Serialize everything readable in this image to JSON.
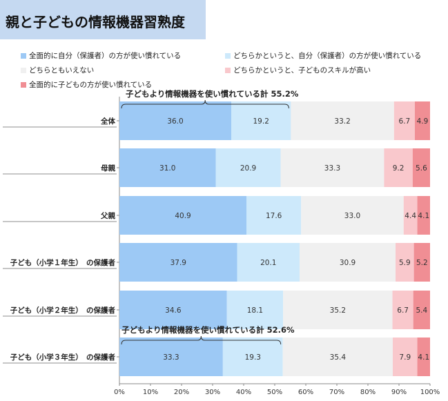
{
  "title": "親と子どもの情報機器習熟度",
  "legend": [
    {
      "label": "全面的に自分（保護者）の方が使い慣れている",
      "color": "#9dc9f5"
    },
    {
      "label": "どちらかというと、自分（保護者）の方が使い慣れている",
      "color": "#cde9fb"
    },
    {
      "label": "どちらともいえない",
      "color": "#f0f0f0"
    },
    {
      "label": "どちらかというと、子どものスキルが高い",
      "color": "#f9c8cc"
    },
    {
      "label": "全面的に子どもの方が使い慣れている",
      "color": "#f08e94"
    }
  ],
  "chart_data": {
    "type": "bar",
    "orientation": "horizontal-stacked-100",
    "categories": [
      "全体",
      "母親",
      "父親",
      "子ども（小学１年生）　の保護者",
      "子ども（小学２年生）　の保護者",
      "子ども（小学３年生）　の保護者"
    ],
    "series": [
      {
        "name": "全面的に自分（保護者）の方が使い慣れている",
        "color": "#9dc9f5",
        "values": [
          36.0,
          31.0,
          40.9,
          37.9,
          34.6,
          33.3
        ]
      },
      {
        "name": "どちらかというと、自分（保護者）の方が使い慣れている",
        "color": "#cde9fb",
        "values": [
          19.2,
          20.9,
          17.6,
          20.1,
          18.1,
          19.3
        ]
      },
      {
        "name": "どちらともいえない",
        "color": "#f0f0f0",
        "values": [
          33.2,
          33.3,
          33.0,
          30.9,
          35.2,
          35.4
        ]
      },
      {
        "name": "どちらかというと、子どものスキルが高い",
        "color": "#f9c8cc",
        "values": [
          6.7,
          9.2,
          4.4,
          5.9,
          6.7,
          7.9
        ]
      },
      {
        "name": "全面的に子どもの方が使い慣れている",
        "color": "#f08e94",
        "values": [
          4.9,
          5.6,
          4.1,
          5.2,
          5.4,
          4.1
        ]
      }
    ],
    "xlim": [
      0,
      100
    ],
    "xticks": [
      "0%",
      "10%",
      "20%",
      "30%",
      "40%",
      "50%",
      "60%",
      "70%",
      "80%",
      "90%",
      "100%"
    ],
    "annotations": [
      {
        "text": "子どもより情報機器を使い慣れている計 55.2%",
        "category_index": 0,
        "value": 55.2
      },
      {
        "text": "子どもより情報機器を使い慣れている計 52.6%",
        "category_index": 5,
        "value": 52.6
      }
    ],
    "grid": false,
    "legend_position": "top"
  }
}
